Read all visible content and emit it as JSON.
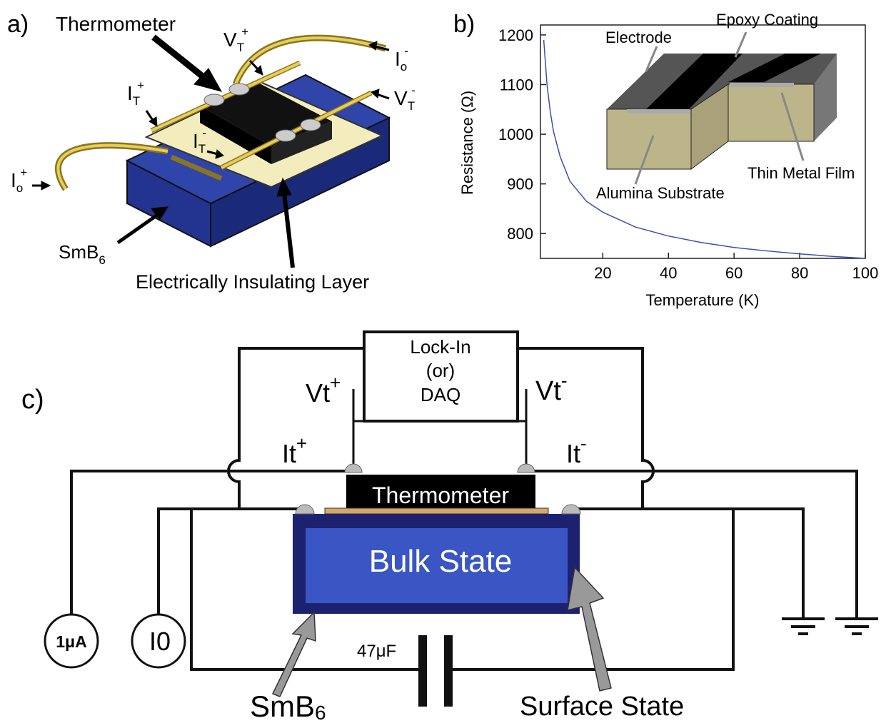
{
  "panel_a": {
    "label": "a)",
    "thermometer": "Thermometer",
    "vt_plus": {
      "base": "V",
      "sub": "T",
      "sup": "+"
    },
    "io_minus": {
      "base": "I",
      "sub": "o",
      "sup": "-"
    },
    "it_plus": {
      "base": "I",
      "sub": "T",
      "sup": "+"
    },
    "vt_minus": {
      "base": "V",
      "sub": "T",
      "sup": "-"
    },
    "it_minus": {
      "base": "I",
      "sub": "T",
      "sup": "-"
    },
    "io_plus": {
      "base": "I",
      "sub": "o",
      "sup": "+"
    },
    "smb6": {
      "base": "SmB",
      "sub": "6"
    },
    "layer": "Electrically Insulating Layer"
  },
  "chart_data": {
    "type": "line",
    "panel_label": "b)",
    "x": [
      2,
      3,
      4,
      5,
      7,
      10,
      15,
      20,
      30,
      40,
      50,
      60,
      70,
      80,
      90,
      100
    ],
    "values": [
      1190,
      1100,
      1045,
      1005,
      955,
      905,
      865,
      843,
      813,
      795,
      782,
      772,
      765,
      759,
      754,
      750
    ],
    "color": "#3a4fb0",
    "xlim": [
      1,
      100
    ],
    "ylim": [
      750,
      1220
    ],
    "xticks": [
      20,
      40,
      60,
      80,
      100
    ],
    "yticks": [
      800,
      900,
      1000,
      1100,
      1200
    ],
    "xlabel": "Temperature (K)",
    "ylabel": "Resistance (Ω)",
    "inset_labels": {
      "electrode": "Electrode",
      "epoxy": "Epoxy Coating",
      "film": "Thin Metal Film",
      "substrate": "Alumina Substrate"
    }
  },
  "panel_c": {
    "label": "c)",
    "lockin": [
      "Lock-In",
      "(or)",
      "DAQ"
    ],
    "vt_plus": {
      "base": "Vt",
      "sup": "+"
    },
    "vt_minus": {
      "base": "Vt",
      "sup": "-"
    },
    "it_plus": {
      "base": "It",
      "sup": "+"
    },
    "it_minus": {
      "base": "It",
      "sup": "-"
    },
    "thermometer": "Thermometer",
    "bulk": "Bulk State",
    "source1": "1μA",
    "source2": "I0",
    "capacitor": "47μF",
    "smb6": {
      "base": "SmB",
      "sub": "6"
    },
    "surface": "Surface State"
  }
}
